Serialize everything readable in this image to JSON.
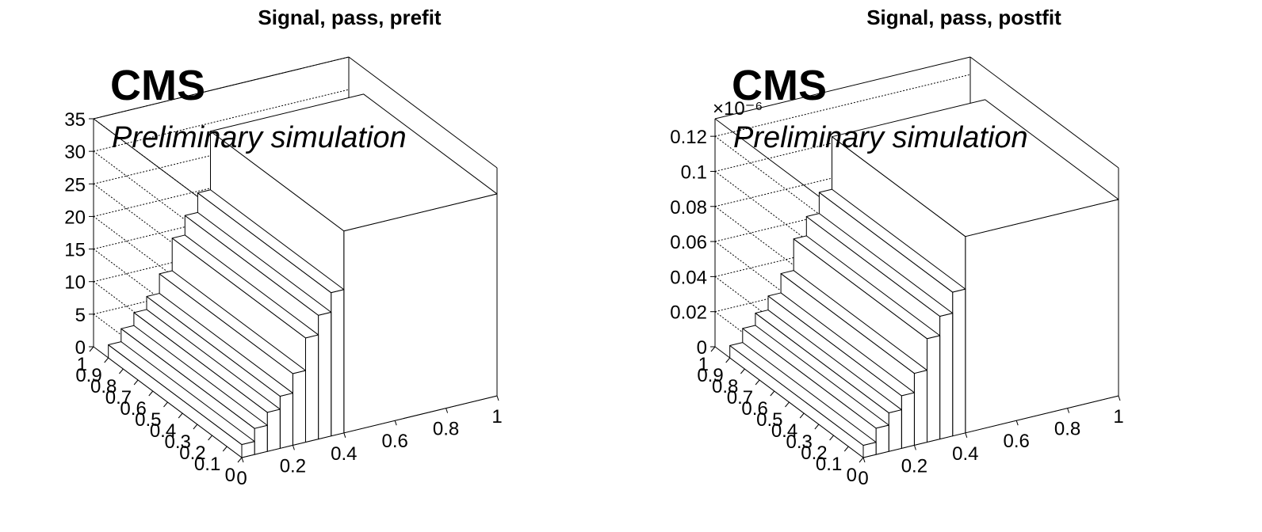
{
  "chart_data": [
    {
      "type": "lego3d",
      "title": "Signal, pass, prefit",
      "cms_label": "CMS",
      "cms_sublabel": "Preliminary simulation",
      "z_multiplier": "",
      "zlim": [
        0,
        35
      ],
      "z_ticks": [
        "0",
        "5",
        "10",
        "15",
        "20",
        "25",
        "30",
        "35"
      ],
      "x_ticks": [
        "0",
        "0.2",
        "0.4",
        "0.6",
        "0.8",
        "1"
      ],
      "y_ticks": [
        "0",
        "0.1",
        "0.2",
        "0.3",
        "0.4",
        "0.5",
        "0.6",
        "0.7",
        "0.8",
        "0.9",
        "1"
      ],
      "grid": true,
      "bins": [
        {
          "x": [
            0.0,
            0.05
          ],
          "y": [
            0.0,
            0.9
          ],
          "z": 2
        },
        {
          "x": [
            0.05,
            0.1
          ],
          "y": [
            0.0,
            0.9
          ],
          "z": 4
        },
        {
          "x": [
            0.1,
            0.15
          ],
          "y": [
            0.0,
            0.9
          ],
          "z": 6
        },
        {
          "x": [
            0.15,
            0.2
          ],
          "y": [
            0.0,
            0.9
          ],
          "z": 8
        },
        {
          "x": [
            0.2,
            0.25
          ],
          "y": [
            0.0,
            0.9
          ],
          "z": 11
        },
        {
          "x": [
            0.25,
            0.3
          ],
          "y": [
            0.0,
            0.9
          ],
          "z": 16
        },
        {
          "x": [
            0.3,
            0.35
          ],
          "y": [
            0.0,
            0.9
          ],
          "z": 19
        },
        {
          "x": [
            0.35,
            0.4
          ],
          "y": [
            0.0,
            0.9
          ],
          "z": 22
        },
        {
          "x": [
            0.4,
            1.0
          ],
          "y": [
            0.0,
            0.9
          ],
          "z": 31
        }
      ]
    },
    {
      "type": "lego3d",
      "title": "Signal, pass, postfit",
      "cms_label": "CMS",
      "cms_sublabel": "Preliminary simulation",
      "z_multiplier": "×10⁻⁶",
      "zlim": [
        0,
        0.13
      ],
      "z_ticks": [
        "0",
        "0.02",
        "0.04",
        "0.06",
        "0.08",
        "0.1",
        "0.12"
      ],
      "x_ticks": [
        "0",
        "0.2",
        "0.4",
        "0.6",
        "0.8",
        "1"
      ],
      "y_ticks": [
        "0",
        "0.1",
        "0.2",
        "0.3",
        "0.4",
        "0.5",
        "0.6",
        "0.7",
        "0.8",
        "0.9",
        "1"
      ],
      "grid": true,
      "bins": [
        {
          "x": [
            0.0,
            0.05
          ],
          "y": [
            0.0,
            0.9
          ],
          "z": 0.007
        },
        {
          "x": [
            0.05,
            0.1
          ],
          "y": [
            0.0,
            0.9
          ],
          "z": 0.015
        },
        {
          "x": [
            0.1,
            0.15
          ],
          "y": [
            0.0,
            0.9
          ],
          "z": 0.022
        },
        {
          "x": [
            0.15,
            0.2
          ],
          "y": [
            0.0,
            0.9
          ],
          "z": 0.03
        },
        {
          "x": [
            0.2,
            0.25
          ],
          "y": [
            0.0,
            0.9
          ],
          "z": 0.041
        },
        {
          "x": [
            0.25,
            0.3
          ],
          "y": [
            0.0,
            0.9
          ],
          "z": 0.059
        },
        {
          "x": [
            0.3,
            0.35
          ],
          "y": [
            0.0,
            0.9
          ],
          "z": 0.07
        },
        {
          "x": [
            0.35,
            0.4
          ],
          "y": [
            0.0,
            0.9
          ],
          "z": 0.082
        },
        {
          "x": [
            0.4,
            1.0
          ],
          "y": [
            0.0,
            0.9
          ],
          "z": 0.112
        }
      ]
    }
  ]
}
